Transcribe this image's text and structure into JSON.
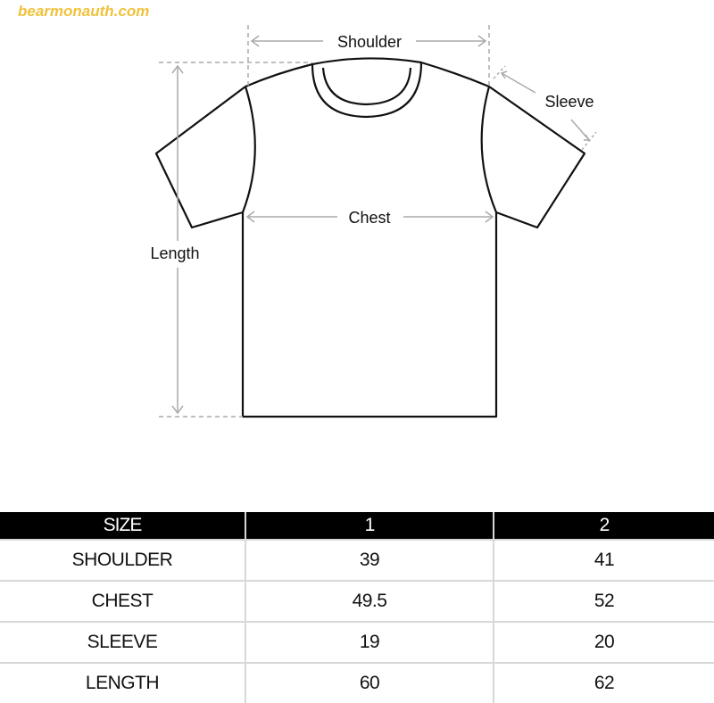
{
  "watermark": "bearmonauth.com",
  "diagram": {
    "shoulder_label": "Shoulder",
    "sleeve_label": "Sleeve",
    "chest_label": "Chest",
    "length_label": "Length"
  },
  "table": {
    "headers": [
      "SIZE",
      "1",
      "2"
    ],
    "rows": [
      [
        "SHOULDER",
        "39",
        "41"
      ],
      [
        "CHEST",
        "49.5",
        "52"
      ],
      [
        "SLEEVE",
        "19",
        "20"
      ],
      [
        "LENGTH",
        "60",
        "62"
      ]
    ]
  }
}
